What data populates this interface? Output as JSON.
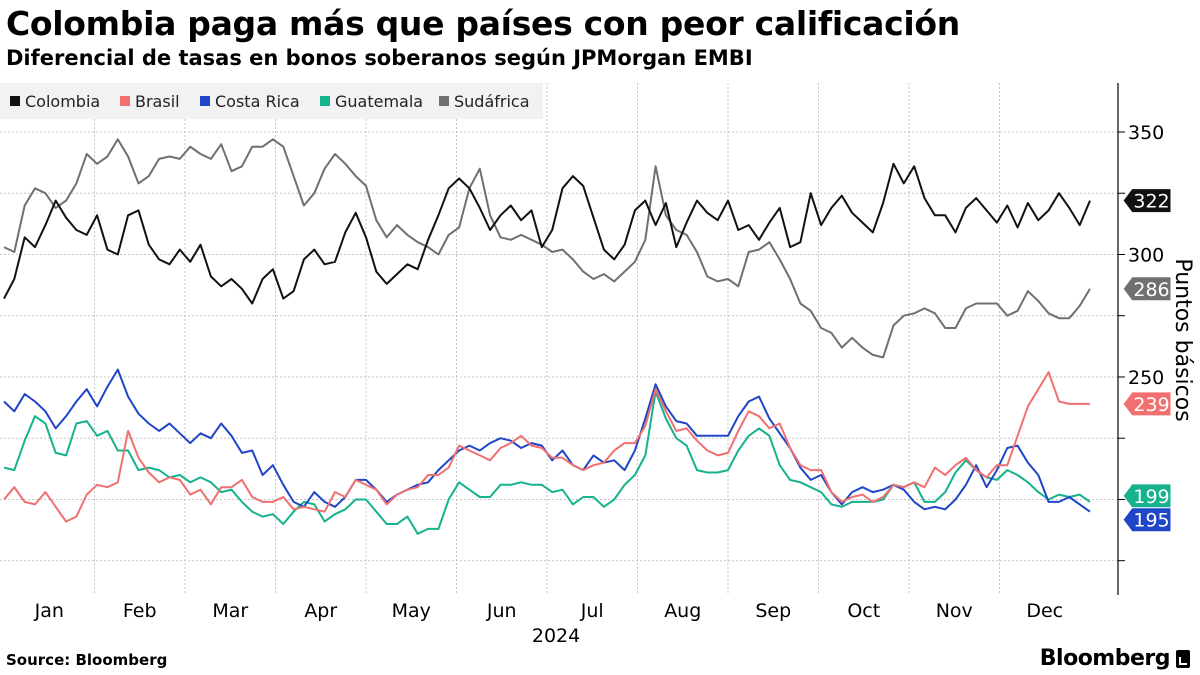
{
  "title": "Colombia paga más que países con peor calificación",
  "subtitle": "Diferencial de tasas en bonos soberanos según JPMorgan EMBI",
  "source": "Source: Bloomberg",
  "brand": "Bloomberg",
  "chart_data": {
    "type": "line",
    "title": "Colombia paga más que países con peor calificación",
    "subtitle": "Diferencial de tasas en bonos soberanos según JPMorgan EMBI",
    "xlabel": "2024",
    "ylabel": "Puntos básicos",
    "ylim": [
      161,
      370
    ],
    "yticks": [
      350,
      300,
      250
    ],
    "ytick_labels": [
      "350",
      "300",
      "250"
    ],
    "months": [
      "Jan",
      "Feb",
      "Mar",
      "Apr",
      "May",
      "Jun",
      "Jul",
      "Aug",
      "Sep",
      "Oct",
      "Nov",
      "Dec"
    ],
    "year_label": "2024",
    "legend_position": "top-left",
    "grid": true,
    "series": [
      {
        "name": "Colombia",
        "color": "#111111",
        "end_label": "322",
        "values": [
          282,
          290,
          307,
          303,
          312,
          322,
          315,
          310,
          308,
          316,
          302,
          300,
          316,
          318,
          304,
          298,
          296,
          302,
          297,
          304,
          291,
          287,
          290,
          286,
          280,
          290,
          294,
          282,
          285,
          298,
          302,
          296,
          297,
          309,
          317,
          307,
          293,
          288,
          292,
          296,
          294,
          306,
          316,
          327,
          331,
          327,
          319,
          310,
          316,
          320,
          314,
          318,
          303,
          310,
          327,
          332,
          328,
          315,
          302,
          298,
          304,
          318,
          322,
          312,
          321,
          303,
          313,
          322,
          317,
          314,
          322,
          310,
          312,
          306,
          313,
          319,
          303,
          305,
          325,
          312,
          319,
          324,
          317,
          313,
          309,
          321,
          337,
          329,
          336,
          323,
          316,
          316,
          309,
          319,
          323,
          318,
          313,
          320,
          311,
          321,
          314,
          318,
          325,
          319,
          312,
          322
        ]
      },
      {
        "name": "Brasil",
        "color": "#f07070",
        "end_label": "239",
        "values": [
          200,
          205,
          199,
          198,
          203,
          197,
          191,
          193,
          202,
          206,
          205,
          207,
          228,
          217,
          211,
          207,
          209,
          208,
          202,
          204,
          198,
          205,
          205,
          208,
          201,
          199,
          199,
          201,
          196,
          197,
          196,
          195,
          203,
          201,
          208,
          206,
          204,
          198,
          202,
          204,
          205,
          210,
          210,
          213,
          222,
          220,
          218,
          216,
          221,
          223,
          226,
          222,
          221,
          217,
          217,
          214,
          212,
          214,
          215,
          220,
          223,
          223,
          230,
          245,
          236,
          228,
          229,
          224,
          220,
          218,
          219,
          228,
          236,
          234,
          229,
          231,
          221,
          214,
          212,
          212,
          203,
          199,
          201,
          202,
          199,
          201,
          206,
          205,
          207,
          205,
          213,
          210,
          214,
          217,
          212,
          209,
          214,
          214,
          226,
          238,
          245,
          252,
          240,
          239,
          239,
          239
        ]
      },
      {
        "name": "Costa Rica",
        "color": "#1f45c8",
        "end_label": "195",
        "values": [
          240,
          236,
          243,
          240,
          236,
          229,
          234,
          240,
          245,
          238,
          246,
          253,
          242,
          235,
          231,
          228,
          231,
          227,
          223,
          227,
          225,
          231,
          226,
          219,
          220,
          210,
          214,
          206,
          199,
          197,
          203,
          199,
          197,
          201,
          208,
          208,
          204,
          199,
          202,
          204,
          206,
          207,
          212,
          216,
          220,
          222,
          220,
          223,
          225,
          224,
          221,
          223,
          222,
          216,
          220,
          214,
          212,
          218,
          215,
          216,
          212,
          220,
          233,
          247,
          238,
          232,
          231,
          226,
          226,
          226,
          226,
          234,
          240,
          242,
          233,
          227,
          221,
          213,
          208,
          210,
          203,
          198,
          203,
          205,
          203,
          204,
          206,
          204,
          199,
          196,
          197,
          196,
          200,
          206,
          214,
          205,
          212,
          221,
          222,
          215,
          210,
          199,
          199,
          201,
          198,
          195
        ]
      },
      {
        "name": "Guatemala",
        "color": "#16b28e",
        "end_label": "199",
        "values": [
          213,
          212,
          224,
          234,
          231,
          219,
          218,
          231,
          232,
          226,
          228,
          220,
          220,
          212,
          213,
          212,
          209,
          210,
          207,
          209,
          207,
          203,
          204,
          199,
          195,
          193,
          194,
          190,
          195,
          199,
          198,
          191,
          194,
          196,
          200,
          200,
          195,
          190,
          190,
          193,
          186,
          188,
          188,
          200,
          207,
          204,
          201,
          201,
          206,
          206,
          207,
          206,
          206,
          203,
          204,
          198,
          201,
          201,
          197,
          200,
          206,
          210,
          218,
          244,
          233,
          225,
          222,
          212,
          211,
          211,
          212,
          220,
          226,
          229,
          226,
          214,
          208,
          207,
          205,
          203,
          198,
          197,
          199,
          199,
          199,
          200,
          206,
          205,
          207,
          199,
          199,
          203,
          211,
          216,
          212,
          209,
          208,
          212,
          210,
          207,
          203,
          200,
          202,
          201,
          202,
          199
        ]
      },
      {
        "name": "Sudáfrica",
        "color": "#707070",
        "end_label": "286",
        "values": [
          303,
          301,
          320,
          327,
          325,
          319,
          322,
          329,
          341,
          337,
          340,
          347,
          340,
          329,
          332,
          339,
          340,
          339,
          344,
          341,
          339,
          345,
          334,
          336,
          344,
          344,
          347,
          344,
          332,
          320,
          325,
          335,
          341,
          337,
          332,
          328,
          314,
          307,
          312,
          308,
          305,
          303,
          300,
          308,
          311,
          327,
          335,
          316,
          307,
          306,
          308,
          306,
          304,
          301,
          302,
          298,
          293,
          290,
          292,
          289,
          293,
          297,
          306,
          336,
          316,
          310,
          308,
          301,
          291,
          289,
          290,
          287,
          301,
          302,
          305,
          298,
          290,
          280,
          277,
          270,
          268,
          262,
          266,
          262,
          259,
          258,
          271,
          275,
          276,
          278,
          276,
          270,
          270,
          278,
          280,
          280,
          280,
          275,
          277,
          285,
          281,
          276,
          274,
          274,
          279,
          286
        ]
      }
    ]
  }
}
